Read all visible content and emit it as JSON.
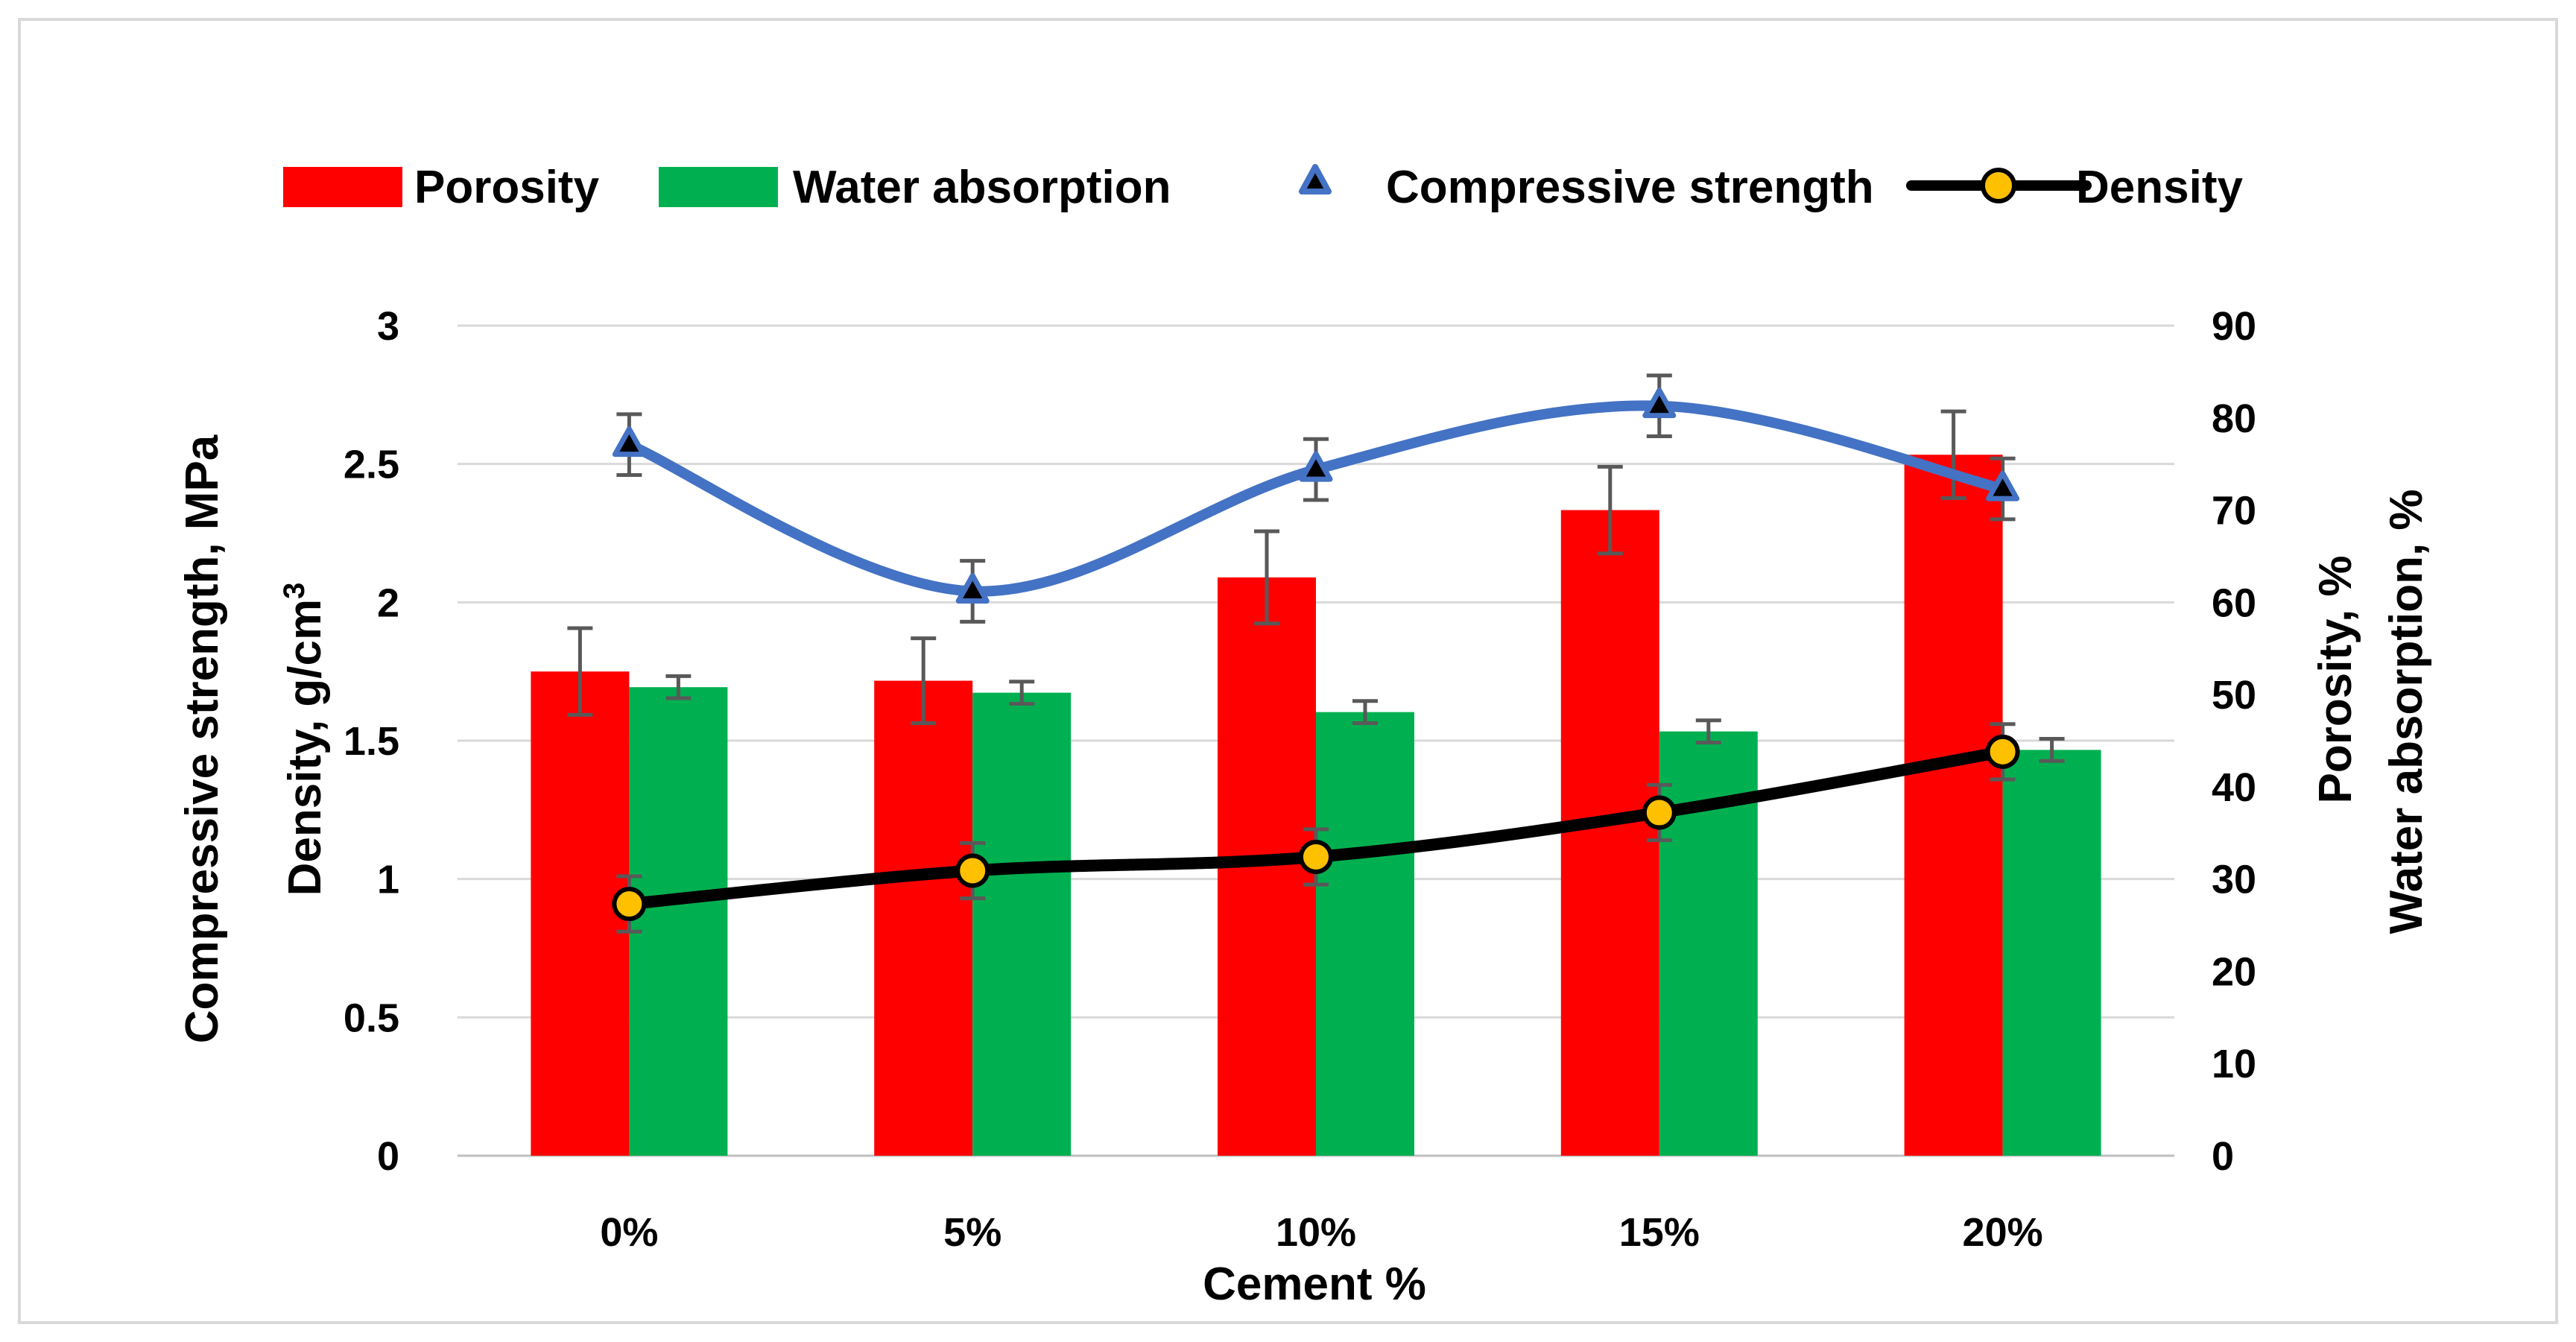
{
  "chart_data": {
    "type": "bar",
    "title": "",
    "xlabel": "Cement %",
    "ylabel_left_lines": [
      "Compressive strength, MPa",
      "Density, g/cm"
    ],
    "ylabel_left_superscript": "3",
    "ylabel_right_lines": [
      "Porosity, %",
      "Water absorption, %"
    ],
    "categories": [
      "0%",
      "5%",
      "10%",
      "15%",
      "20%"
    ],
    "y_left": {
      "min": 0,
      "max": 3,
      "step": 0.5,
      "ticks": [
        "0",
        "0.5",
        "1",
        "1.5",
        "2",
        "2.5",
        "3"
      ]
    },
    "y_right": {
      "min": 0,
      "max": 90,
      "step": 10,
      "ticks": [
        "0",
        "10",
        "20",
        "30",
        "40",
        "50",
        "60",
        "70",
        "80",
        "90"
      ]
    },
    "grid": true,
    "legend_position": "top",
    "series": [
      {
        "name": "Porosity",
        "type": "bar",
        "axis": "right",
        "color": "#ff0000",
        "values": [
          52.5,
          51.5,
          62.7,
          70.0,
          76.0
        ],
        "error": [
          4.7,
          4.6,
          5.0,
          4.7,
          4.7
        ]
      },
      {
        "name": "Water absorption",
        "type": "bar",
        "axis": "right",
        "color": "#00b050",
        "values": [
          50.8,
          50.2,
          48.1,
          46.0,
          44.0
        ],
        "error": [
          1.2,
          1.2,
          1.2,
          1.2,
          1.2
        ]
      },
      {
        "name": "Compressive strength",
        "type": "scatter-smooth",
        "axis": "left",
        "color": "#4472c4",
        "marker": "triangle",
        "values": [
          2.57,
          2.04,
          2.48,
          2.71,
          2.41
        ],
        "error": [
          0.11,
          0.11,
          0.11,
          0.11,
          0.11
        ]
      },
      {
        "name": "Density",
        "type": "line",
        "axis": "left",
        "color": "#000000",
        "marker": "circle",
        "marker_fill": "#ffc000",
        "values": [
          0.91,
          1.03,
          1.08,
          1.24,
          1.46
        ],
        "error": [
          0.1,
          0.1,
          0.1,
          0.1,
          0.1
        ]
      }
    ]
  }
}
